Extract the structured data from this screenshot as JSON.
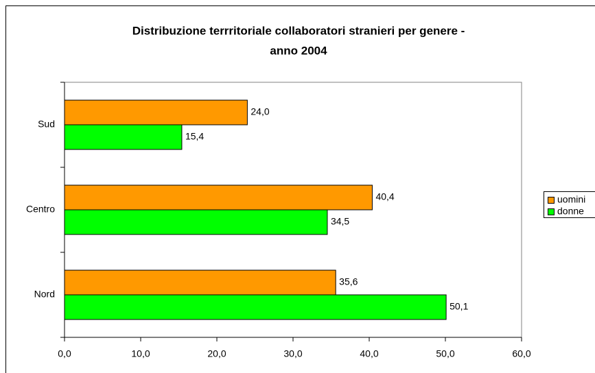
{
  "chart_data": {
    "type": "hbar",
    "title": "Distribuzione terrritoriale collaboratori stranieri per genere -",
    "subtitle": "anno 2004",
    "categories": [
      "Nord",
      "Centro",
      "Sud"
    ],
    "series": [
      {
        "name": "uomini",
        "color": "#ff9900",
        "values": [
          35.6,
          40.4,
          24.0
        ],
        "value_labels": [
          "35,6",
          "40,4",
          "24,0"
        ]
      },
      {
        "name": "donne",
        "color": "#00ff00",
        "values": [
          50.1,
          34.5,
          15.4
        ],
        "value_labels": [
          "50,1",
          "34,5",
          "15,4"
        ]
      }
    ],
    "xlim": [
      0,
      60
    ],
    "xticks": [
      {
        "value": 0,
        "label": "0,0"
      },
      {
        "value": 10,
        "label": "10,0"
      },
      {
        "value": 20,
        "label": "20,0"
      },
      {
        "value": 30,
        "label": "30,0"
      },
      {
        "value": 40,
        "label": "40,0"
      },
      {
        "value": 50,
        "label": "50,0"
      },
      {
        "value": 60,
        "label": "60,0"
      }
    ],
    "grid": false,
    "legend": "right"
  }
}
